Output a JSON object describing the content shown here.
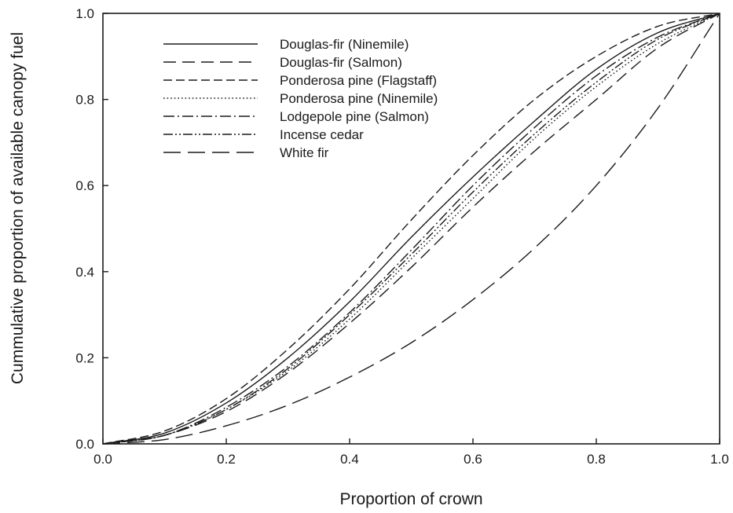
{
  "chart_data": {
    "type": "line",
    "xlabel": "Proportion of crown",
    "ylabel": "Cummulative proportion of available canopy fuel",
    "xlim": [
      0.0,
      1.0
    ],
    "ylim": [
      0.0,
      1.0
    ],
    "xticks": [
      "0.0",
      "0.2",
      "0.4",
      "0.6",
      "0.8",
      "1.0"
    ],
    "yticks": [
      "0.0",
      "0.2",
      "0.4",
      "0.6",
      "0.8",
      "1.0"
    ],
    "grid": false,
    "legend_position": "top-left",
    "x": [
      0.0,
      0.1,
      0.2,
      0.3,
      0.4,
      0.5,
      0.6,
      0.7,
      0.8,
      0.9,
      1.0
    ],
    "series": [
      {
        "name": "Douglas-fir (Ninemile)",
        "dash": "solid",
        "values": [
          0.0,
          0.025,
          0.095,
          0.2,
          0.33,
          0.48,
          0.62,
          0.75,
          0.87,
          0.955,
          1.0
        ]
      },
      {
        "name": "Douglas-fir (Salmon)",
        "dash": "long-dash",
        "values": [
          0.0,
          0.02,
          0.075,
          0.165,
          0.28,
          0.41,
          0.55,
          0.68,
          0.8,
          0.92,
          1.0
        ]
      },
      {
        "name": "Ponderosa pine (Flagstaff)",
        "dash": "dash",
        "values": [
          0.0,
          0.03,
          0.105,
          0.22,
          0.36,
          0.52,
          0.67,
          0.8,
          0.9,
          0.97,
          1.0
        ]
      },
      {
        "name": "Ponderosa pine (Ninemile)",
        "dash": "dot",
        "values": [
          0.0,
          0.02,
          0.08,
          0.17,
          0.29,
          0.43,
          0.57,
          0.71,
          0.83,
          0.93,
          1.0
        ]
      },
      {
        "name": "Lodgepole pine (Salmon)",
        "dash": "dash-dot",
        "values": [
          0.0,
          0.02,
          0.085,
          0.18,
          0.305,
          0.45,
          0.6,
          0.735,
          0.855,
          0.945,
          1.0
        ]
      },
      {
        "name": "Incense cedar",
        "dash": "dash-dot-dot",
        "values": [
          0.0,
          0.02,
          0.08,
          0.175,
          0.3,
          0.44,
          0.585,
          0.72,
          0.84,
          0.94,
          1.0
        ]
      },
      {
        "name": "White fir",
        "dash": "very-long-dash",
        "values": [
          0.0,
          0.01,
          0.042,
          0.09,
          0.155,
          0.235,
          0.335,
          0.455,
          0.6,
          0.78,
          1.0
        ]
      }
    ]
  }
}
